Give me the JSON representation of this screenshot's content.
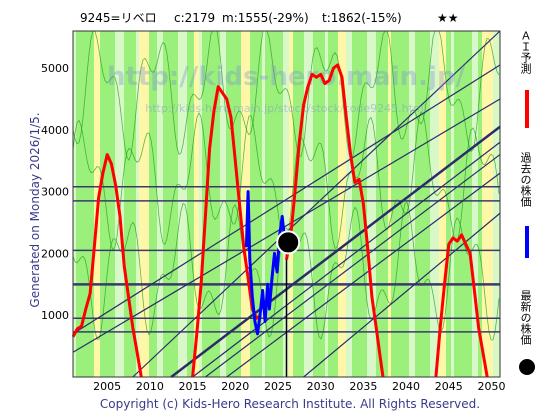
{
  "header": {
    "code_name": "9245=リベロ",
    "current": "c:2179",
    "min": "m:1555(-29%)",
    "target": "t:1862(-15%)",
    "stars": "★★"
  },
  "side_label_left": "Generated on Monday 2026/1/5.",
  "watermark_large": "http://kids-hero.main.jp/",
  "watermark_small": "http://kids-hero.main.jp/stock/stock/code9245.html",
  "footer": "Copyright (c) Kids-Hero Research Institute. All Rights Reserved.",
  "legend": {
    "ai": "ＡＩ予測",
    "past": "過去の株価",
    "latest": "最新の株価",
    "ai_color": "#ff0000",
    "past_color": "#0000ff",
    "latest_color": "#000000"
  },
  "colors": {
    "band_green": "#9af07a",
    "band_yellow": "#fff7a8",
    "band_pale": "#d8f8c8",
    "channel": "#2c2c6a",
    "hline": "#3a3a6e",
    "green_line": "#1a9a1a"
  },
  "chart_data": {
    "type": "line",
    "xlim": [
      2001,
      2051
    ],
    "ylim": [
      0,
      5600
    ],
    "x_ticks": [
      2005,
      2010,
      2015,
      2020,
      2025,
      2030,
      2035,
      2040,
      2045,
      2050
    ],
    "y_ticks": [
      1000,
      2000,
      3000,
      4000,
      5000
    ],
    "latest_point": {
      "x": 2026.2,
      "y": 2179
    },
    "horizontal_lines": [
      3080,
      2850,
      2050,
      1500,
      950,
      730
    ],
    "series": [
      {
        "role": "ai_forecast",
        "color": "#ff0000",
        "segments": [
          [
            [
              2001,
              650
            ],
            [
              2001.5,
              780
            ],
            [
              2002,
              820
            ],
            [
              2002.5,
              1100
            ],
            [
              2003,
              1350
            ],
            [
              2003.5,
              2100
            ],
            [
              2004,
              2900
            ],
            [
              2004.5,
              3300
            ],
            [
              2005,
              3600
            ],
            [
              2005.5,
              3450
            ],
            [
              2006,
              3100
            ],
            [
              2006.5,
              2600
            ],
            [
              2007,
              1800
            ],
            [
              2007.5,
              1300
            ],
            [
              2008,
              800
            ],
            [
              2008.5,
              400
            ],
            [
              2009,
              0
            ]
          ],
          [
            [
              2015,
              0
            ],
            [
              2015.5,
              700
            ],
            [
              2016,
              1500
            ],
            [
              2016.5,
              2600
            ],
            [
              2017,
              3700
            ],
            [
              2017.5,
              4300
            ],
            [
              2018,
              4700
            ],
            [
              2018.5,
              4600
            ],
            [
              2019,
              4500
            ],
            [
              2019.5,
              4200
            ],
            [
              2020,
              3500
            ],
            [
              2020.5,
              2800
            ],
            [
              2021,
              2100
            ],
            [
              2021.5,
              1600
            ],
            [
              2022,
              1100
            ],
            [
              2022.5,
              950
            ],
            [
              2023,
              1000
            ]
          ],
          [
            [
              2026,
              1900
            ],
            [
              2026.5,
              2300
            ],
            [
              2027,
              3000
            ],
            [
              2027.5,
              3800
            ],
            [
              2028,
              4400
            ],
            [
              2028.5,
              4700
            ],
            [
              2029,
              4900
            ],
            [
              2029.5,
              4850
            ],
            [
              2030,
              4900
            ],
            [
              2030.5,
              4750
            ],
            [
              2031,
              4800
            ],
            [
              2031.5,
              5000
            ],
            [
              2032,
              5050
            ],
            [
              2032.5,
              4850
            ],
            [
              2033,
              4200
            ],
            [
              2033.5,
              3600
            ],
            [
              2034,
              3150
            ],
            [
              2034.5,
              3200
            ],
            [
              2035,
              2800
            ],
            [
              2035.5,
              2100
            ],
            [
              2036,
              1300
            ],
            [
              2036.5,
              800
            ],
            [
              2037,
              300
            ],
            [
              2037.3,
              0
            ]
          ],
          [
            [
              2043.5,
              0
            ],
            [
              2044,
              800
            ],
            [
              2044.5,
              1500
            ],
            [
              2045,
              2150
            ],
            [
              2045.5,
              2250
            ],
            [
              2046,
              2200
            ],
            [
              2046.5,
              2300
            ],
            [
              2047,
              2150
            ],
            [
              2047.5,
              2000
            ],
            [
              2048,
              1400
            ],
            [
              2048.5,
              800
            ],
            [
              2049,
              400
            ],
            [
              2049.5,
              0
            ]
          ]
        ]
      },
      {
        "role": "past_price",
        "color": "#0000ff",
        "points": [
          [
            2021.3,
            2100
          ],
          [
            2021.5,
            3000
          ],
          [
            2021.7,
            1900
          ],
          [
            2022,
            1300
          ],
          [
            2022.3,
            900
          ],
          [
            2022.6,
            700
          ],
          [
            2022.9,
            1000
          ],
          [
            2023.2,
            1400
          ],
          [
            2023.5,
            900
          ],
          [
            2023.8,
            1500
          ],
          [
            2024,
            1100
          ],
          [
            2024.3,
            1600
          ],
          [
            2024.6,
            2000
          ],
          [
            2024.9,
            1700
          ],
          [
            2025.2,
            2300
          ],
          [
            2025.5,
            2600
          ],
          [
            2025.8,
            2200
          ],
          [
            2026.2,
            2179
          ]
        ]
      }
    ]
  }
}
